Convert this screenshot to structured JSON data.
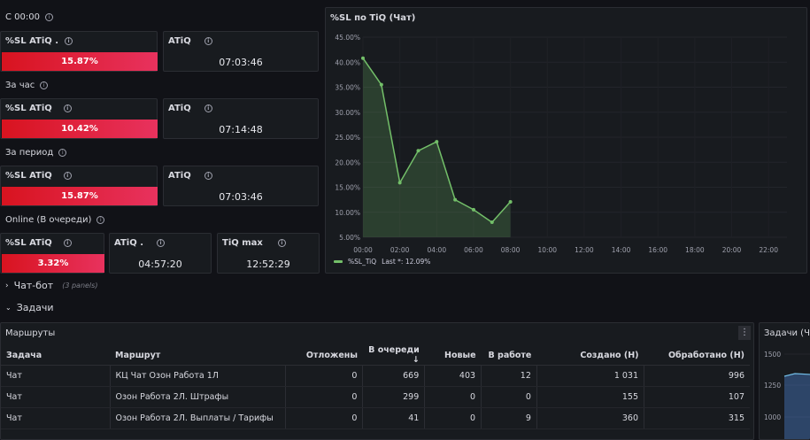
{
  "sections": {
    "since_midnight": "С 00:00",
    "last_hour": "За час",
    "period": "За период",
    "online": "Online (В очереди)"
  },
  "since_midnight": {
    "sl_title": "%SL ATiQ .",
    "sl_value": "15.87%",
    "sl_fraction": 0.1587,
    "atiq_title": "ATiQ",
    "atiq_value": "07:03:46"
  },
  "last_hour": {
    "sl_title": "%SL ATiQ",
    "sl_value": "10.42%",
    "sl_fraction": 0.1042,
    "atiq_title": "ATiQ",
    "atiq_value": "07:14:48"
  },
  "period": {
    "sl_title": "%SL ATiQ",
    "sl_value": "15.87%",
    "sl_fraction": 0.1587,
    "atiq_title": "ATiQ",
    "atiq_value": "07:03:46"
  },
  "online": {
    "sl_title": "%SL ATiQ",
    "sl_value": "3.32%",
    "sl_fraction": 0.0332,
    "atiq_title": "ATiQ .",
    "atiq_value": "04:57:20",
    "tiqmax_title": "TiQ max",
    "tiqmax_value": "12:52:29"
  },
  "chart_panel": {
    "title": "%SL по TiQ (Чат)",
    "legend_label": "%SL_TiQ",
    "legend_last": "Last *: 12.09%"
  },
  "chart_data": {
    "type": "area",
    "x": [
      "00:00",
      "01:00",
      "02:00",
      "03:00",
      "04:00",
      "05:00",
      "06:00",
      "07:00",
      "08:00"
    ],
    "series": [
      {
        "name": "%SL_TiQ",
        "values": [
          40.8,
          35.5,
          15.9,
          22.3,
          24.1,
          12.5,
          10.5,
          8.0,
          12.09
        ]
      }
    ],
    "xticks": [
      "00:00",
      "02:00",
      "04:00",
      "06:00",
      "08:00",
      "10:00",
      "12:00",
      "14:00",
      "16:00",
      "18:00",
      "20:00",
      "22:00"
    ],
    "yticks": [
      "5.00%",
      "10.00%",
      "15.00%",
      "20.00%",
      "25.00%",
      "30.00%",
      "35.00%",
      "40.00%",
      "45.00%"
    ],
    "ylim": [
      5,
      45
    ],
    "xlim": [
      "00:00",
      "23:00"
    ],
    "color": "#73bf69"
  },
  "rows": {
    "chat_bot": "Чат-бот",
    "chat_bot_count": "(3 panels)",
    "tasks": "Задачи"
  },
  "routes_panel": {
    "title": "Маршруты",
    "columns": [
      "Задача",
      "Маршрут",
      "Отложены",
      "В очереди ↓",
      "Новые",
      "В работе",
      "Создано (Н)",
      "Обработано (Н)"
    ],
    "rows": [
      [
        "Чат",
        "КЦ Чат Озон Работа 1Л",
        "0",
        "669",
        "403",
        "12",
        "1 031",
        "996"
      ],
      [
        "Чат",
        "Озон Работа 2Л. Штрафы",
        "0",
        "299",
        "0",
        "0",
        "155",
        "107"
      ],
      [
        "Чат",
        "Озон Работа 2Л. Выплаты / Тарифы",
        "0",
        "41",
        "0",
        "9",
        "360",
        "315"
      ]
    ]
  },
  "tasks_panel": {
    "title": "Задачи (Ча",
    "yticks": [
      "1500",
      "1250",
      "1000"
    ]
  },
  "colors": {
    "background": "#111217",
    "panel": "#181b1f",
    "red_start": "#d8131f",
    "red_end": "#e8325e",
    "series_green": "#73bf69"
  }
}
